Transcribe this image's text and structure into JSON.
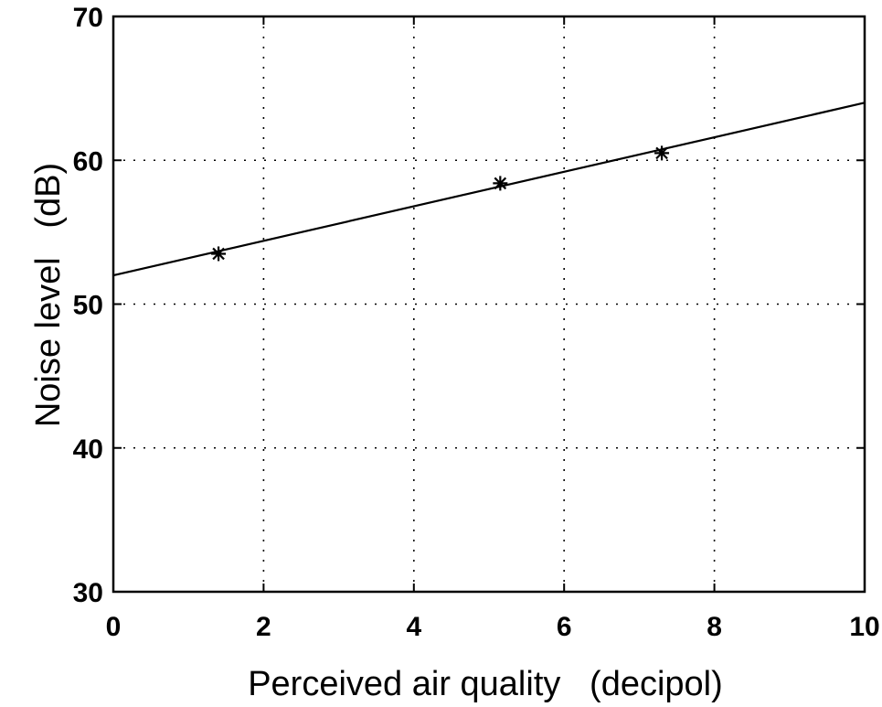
{
  "chart_data": {
    "type": "scatter",
    "title": "",
    "xlabel": "Perceived air quality   (decipol)",
    "ylabel": "Noise level   (dB)",
    "xlim": [
      0,
      10
    ],
    "ylim": [
      30,
      70
    ],
    "x_ticks": [
      0,
      2,
      4,
      6,
      8,
      10
    ],
    "y_ticks": [
      30,
      40,
      50,
      60,
      70
    ],
    "grid": true,
    "series": [
      {
        "kind": "points",
        "marker": "asterisk",
        "x": [
          1.4,
          5.15,
          7.3
        ],
        "y": [
          53.5,
          58.4,
          60.5
        ]
      },
      {
        "kind": "line",
        "x": [
          0,
          10
        ],
        "y": [
          52,
          64
        ]
      }
    ]
  }
}
